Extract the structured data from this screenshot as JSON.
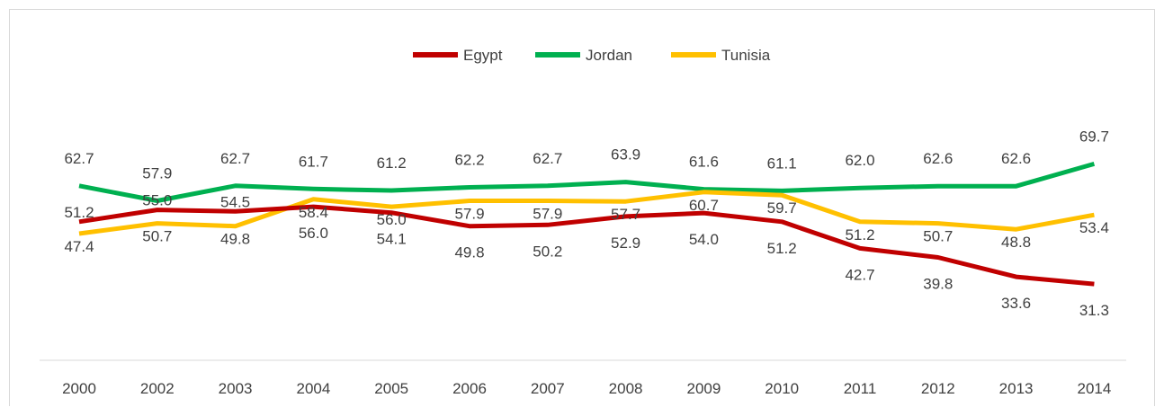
{
  "chart_data": {
    "type": "line",
    "categories": [
      "2000",
      "2002",
      "2003",
      "2004",
      "2005",
      "2006",
      "2007",
      "2008",
      "2009",
      "2010",
      "2011",
      "2012",
      "2013",
      "2014"
    ],
    "series": [
      {
        "name": "Egypt",
        "color": "#c00000",
        "values": [
          51.2,
          55.0,
          54.5,
          56.0,
          54.1,
          49.8,
          50.2,
          52.9,
          54.0,
          51.2,
          42.7,
          39.8,
          33.6,
          31.3
        ]
      },
      {
        "name": "Jordan",
        "color": "#00b050",
        "values": [
          62.7,
          57.9,
          62.7,
          61.7,
          61.2,
          62.2,
          62.7,
          63.9,
          61.6,
          61.1,
          62.0,
          62.6,
          62.6,
          69.7
        ]
      },
      {
        "name": "Tunisia",
        "color": "#ffc000",
        "values": [
          47.4,
          50.7,
          49.8,
          58.4,
          56.0,
          57.9,
          57.9,
          57.7,
          60.7,
          59.7,
          51.2,
          50.7,
          48.8,
          53.4
        ]
      }
    ],
    "data_labels": {
      "Egypt": [
        "51.2",
        "55.0",
        "54.5",
        "56.0",
        "54.1",
        "49.8",
        "50.2",
        "52.9",
        "54.0",
        "51.2",
        "42.7",
        "39.8",
        "33.6",
        "31.3"
      ],
      "Jordan": [
        "62.7",
        "57.9",
        "62.7",
        "61.7",
        "61.2",
        "62.2",
        "62.7",
        "63.9",
        "61.6",
        "61.1",
        "62.0",
        "62.6",
        "62.6",
        "69.7"
      ],
      "Tunisia": [
        "47.4",
        "50.7",
        "49.8",
        "58.4",
        "56.0",
        "57.9",
        "57.9",
        "57.7",
        "60.7",
        "59.7",
        "51.2",
        "50.7",
        "48.8",
        "53.4"
      ]
    },
    "title": "",
    "xlabel": "",
    "ylabel": "",
    "legend_position": "top-center",
    "grid": false,
    "axis_line_color": "#d9d9d9"
  }
}
